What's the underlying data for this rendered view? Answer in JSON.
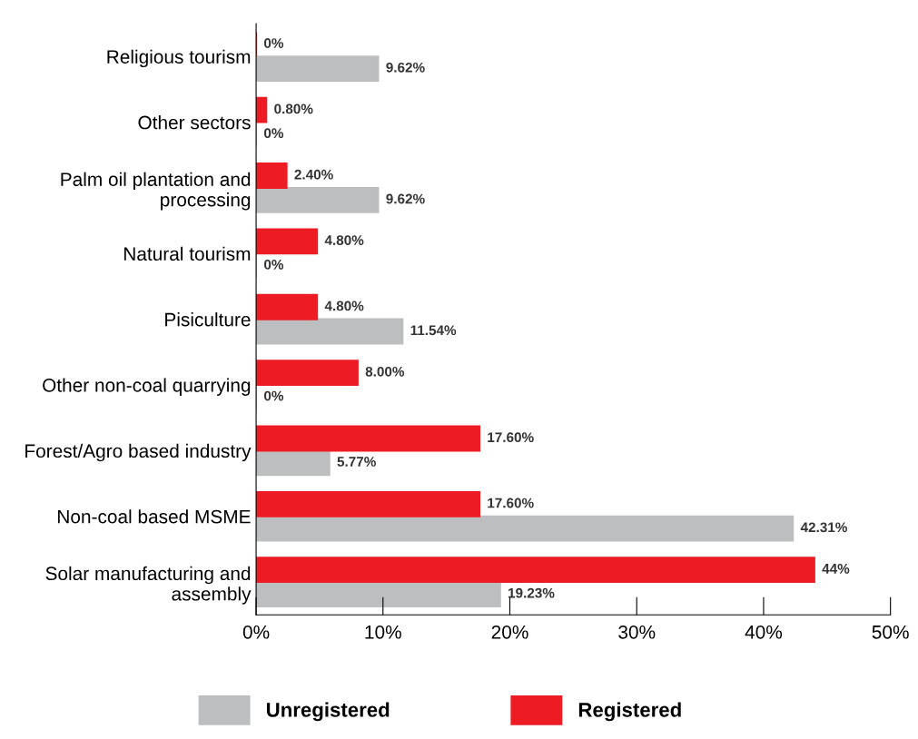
{
  "chart_data": {
    "type": "bar",
    "orientation": "horizontal",
    "categories": [
      "Religious tourism",
      "Other sectors",
      "Palm oil plantation and\nprocessing",
      "Natural tourism",
      "Pisiculture",
      "Other non-coal quarrying",
      "Forest/Agro based industry",
      "Non-coal based MSME",
      "Solar manufacturing and\nassembly"
    ],
    "series": [
      {
        "name": "Unregistered",
        "color": "#bcbec0",
        "values": [
          9.62,
          0,
          9.62,
          0,
          11.54,
          0,
          5.77,
          42.31,
          19.23
        ],
        "value_labels": [
          "9.62%",
          "0%",
          "9.62%",
          "0%",
          "11.54%",
          "0%",
          "5.77%",
          "42.31%",
          "19.23%"
        ]
      },
      {
        "name": "Registered",
        "color": "#ed1c24",
        "values": [
          0,
          0.8,
          2.4,
          4.8,
          4.8,
          8.0,
          17.6,
          17.6,
          44
        ],
        "value_labels": [
          "0%",
          "0.80%",
          "2.40%",
          "4.80%",
          "4.80%",
          "8.00%",
          "17.60%",
          "17.60%",
          "44%"
        ]
      }
    ],
    "xlim": [
      0,
      50
    ],
    "xticks": [
      {
        "value": 0,
        "label": "0%"
      },
      {
        "value": 10,
        "label": "10%"
      },
      {
        "value": 20,
        "label": "20%"
      },
      {
        "value": 30,
        "label": "30%"
      },
      {
        "value": 40,
        "label": "40%"
      },
      {
        "value": 50,
        "label": "50%"
      }
    ],
    "grid": false,
    "legend": "bottom"
  }
}
